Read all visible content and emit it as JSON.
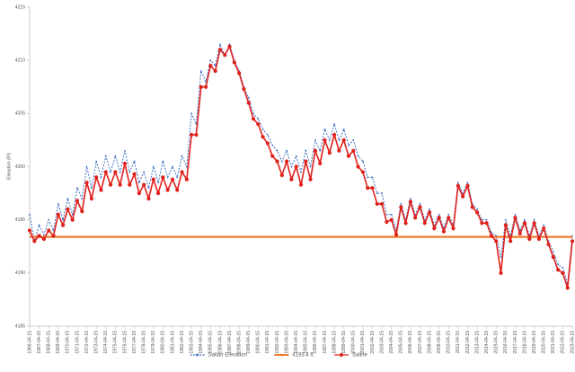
{
  "chart_data": {
    "type": "line",
    "y_label": "Elevation (Ft)",
    "ylim": [
      4185,
      4215
    ],
    "yticks": [
      4185,
      4190,
      4195,
      4200,
      4205,
      4210,
      4215
    ],
    "xlim": [
      "1966-04-15",
      "2023-04-15"
    ],
    "xticks": [
      "1966-04-15",
      "1967-04-15",
      "1968-04-15",
      "1969-04-15",
      "1970-04-15",
      "1971-04-15",
      "1972-04-15",
      "1973-04-15",
      "1974-04-15",
      "1975-04-15",
      "1976-04-15",
      "1977-04-15",
      "1978-04-15",
      "1979-04-15",
      "1980-04-15",
      "1981-04-15",
      "1982-04-15",
      "1983-04-15",
      "1984-04-15",
      "1985-04-15",
      "1986-04-15",
      "1987-04-15",
      "1988-04-15",
      "1989-04-15",
      "1990-04-15",
      "1991-04-15",
      "1992-04-15",
      "1993-04-15",
      "1994-04-15",
      "1995-04-15",
      "1996-04-15",
      "1997-04-15",
      "1998-04-15",
      "1999-04-15",
      "2000-04-15",
      "2001-04-15",
      "2002-04-15",
      "2003-04-15",
      "2004-04-15",
      "2005-04-15",
      "2006-04-15",
      "2007-04-15",
      "2008-04-15",
      "2009-04-15",
      "2010-04-15",
      "2011-04-15",
      "2012-04-15",
      "2013-04-15",
      "2014-04-15",
      "2015-04-15",
      "2016-04-15",
      "2017-04-15",
      "2018-04-15",
      "2019-04-15",
      "2020-04-15",
      "2021-04-15",
      "2022-04-15",
      "2023-04-15"
    ],
    "x": [
      "1966-04-15",
      "1966-10-15",
      "1967-04-15",
      "1967-10-15",
      "1968-04-15",
      "1968-10-15",
      "1969-04-15",
      "1969-10-15",
      "1970-04-15",
      "1970-10-15",
      "1971-04-15",
      "1971-10-15",
      "1972-04-15",
      "1972-10-15",
      "1973-04-15",
      "1973-10-15",
      "1974-04-15",
      "1974-10-15",
      "1975-04-15",
      "1975-10-15",
      "1976-04-15",
      "1976-10-15",
      "1977-04-15",
      "1977-10-15",
      "1978-04-15",
      "1978-10-15",
      "1979-04-15",
      "1979-10-15",
      "1980-04-15",
      "1980-10-15",
      "1981-04-15",
      "1981-10-15",
      "1982-04-15",
      "1982-10-15",
      "1983-04-15",
      "1983-10-15",
      "1984-04-15",
      "1984-10-15",
      "1985-04-15",
      "1985-10-15",
      "1986-04-15",
      "1986-10-15",
      "1987-04-15",
      "1987-10-15",
      "1988-04-15",
      "1988-10-15",
      "1989-04-15",
      "1989-10-15",
      "1990-04-15",
      "1990-10-15",
      "1991-04-15",
      "1991-10-15",
      "1992-04-15",
      "1992-10-15",
      "1993-04-15",
      "1993-10-15",
      "1994-04-15",
      "1994-10-15",
      "1995-04-15",
      "1995-10-15",
      "1996-04-15",
      "1996-10-15",
      "1997-04-15",
      "1997-10-15",
      "1998-04-15",
      "1998-10-15",
      "1999-04-15",
      "1999-10-15",
      "2000-04-15",
      "2000-10-15",
      "2001-04-15",
      "2001-10-15",
      "2002-04-15",
      "2002-10-15",
      "2003-04-15",
      "2003-10-15",
      "2004-04-15",
      "2004-10-15",
      "2005-04-15",
      "2005-10-15",
      "2006-04-15",
      "2006-10-15",
      "2007-04-15",
      "2007-10-15",
      "2008-04-15",
      "2008-10-15",
      "2009-04-15",
      "2009-10-15",
      "2010-04-15",
      "2010-10-15",
      "2011-04-15",
      "2011-10-15",
      "2012-04-15",
      "2012-10-15",
      "2013-04-15",
      "2013-10-15",
      "2014-04-15",
      "2014-10-15",
      "2015-04-15",
      "2015-10-15",
      "2016-04-15",
      "2016-10-15",
      "2017-04-15",
      "2017-10-15",
      "2018-04-15",
      "2018-10-15",
      "2019-04-15",
      "2019-10-15",
      "2020-04-15",
      "2020-10-15",
      "2021-04-15",
      "2021-10-15",
      "2022-04-15",
      "2022-10-15",
      "2023-04-15"
    ],
    "series": [
      {
        "name": "Saltair Elevation",
        "color": "#4472c4",
        "style": "dashed",
        "values": [
          4195.5,
          4193.0,
          4194.5,
          4193.6,
          4195.0,
          4194.0,
          4196.5,
          4195.0,
          4197.0,
          4195.5,
          4198.0,
          4197.0,
          4200.0,
          4198.0,
          4200.5,
          4199.0,
          4201.0,
          4199.5,
          4201.0,
          4199.5,
          4201.5,
          4199.5,
          4200.5,
          4198.5,
          4199.5,
          4198.0,
          4200.0,
          4198.5,
          4200.5,
          4199.0,
          4200.0,
          4199.0,
          4201.0,
          4200.0,
          4205.0,
          4204.0,
          4209.0,
          4208.0,
          4210.0,
          4209.5,
          4211.5,
          4210.5,
          4211.5,
          4210.0,
          4209.0,
          4207.5,
          4206.5,
          4205.0,
          4204.5,
          4203.5,
          4203.0,
          4202.0,
          4201.5,
          4200.5,
          4201.5,
          4200.0,
          4201.0,
          4199.5,
          4201.5,
          4200.0,
          4202.5,
          4201.5,
          4203.5,
          4202.5,
          4204.0,
          4202.5,
          4203.5,
          4202.0,
          4202.5,
          4201.0,
          4200.5,
          4199.0,
          4199.0,
          4197.5,
          4197.5,
          4195.5,
          4195.5,
          4194.0,
          4196.5,
          4195.0,
          4197.0,
          4195.5,
          4196.5,
          4195.0,
          4196.0,
          4194.5,
          4195.5,
          4194.2,
          4195.5,
          4194.5,
          4198.5,
          4197.5,
          4198.5,
          4196.5,
          4196.0,
          4195.0,
          4195.0,
          4193.8,
          4193.5,
          4191.5,
          4195.0,
          4193.5,
          4195.5,
          4194.0,
          4195.0,
          4193.5,
          4195.0,
          4193.5,
          4194.5,
          4193.0,
          4192.0,
          4190.8,
          4190.5,
          4189.0,
          4193.5
        ]
      },
      {
        "name": "4193.4 ft",
        "color": "#ed7d31",
        "style": "solid",
        "x": [
          "1966-04-15",
          "2023-04-15"
        ],
        "values": [
          4193.4,
          4193.4
        ]
      },
      {
        "name": "Saline",
        "color": "#e0201b",
        "style": "dots",
        "values": [
          4194.0,
          4193.0,
          4193.5,
          4193.2,
          4194.0,
          4193.5,
          4195.5,
          4194.5,
          4196.0,
          4195.0,
          4196.8,
          4195.8,
          4198.5,
          4197.0,
          4199.0,
          4197.8,
          4199.5,
          4198.3,
          4199.5,
          4198.3,
          4200.3,
          4198.3,
          4199.3,
          4197.5,
          4198.3,
          4197.0,
          4198.8,
          4197.5,
          4199.0,
          4197.8,
          4198.8,
          4197.8,
          4199.5,
          4198.8,
          4203.0,
          4203.0,
          4207.5,
          4207.5,
          4209.5,
          4209.0,
          4211.0,
          4210.5,
          4211.3,
          4209.8,
          4208.8,
          4207.3,
          4206.0,
          4204.5,
          4204.0,
          4202.8,
          4202.2,
          4201.0,
          4200.5,
          4199.2,
          4200.5,
          4198.8,
          4200.0,
          4198.3,
          4200.5,
          4198.8,
          4201.5,
          4200.3,
          4202.5,
          4201.3,
          4203.0,
          4201.5,
          4202.5,
          4201.0,
          4201.5,
          4200.0,
          4199.5,
          4198.0,
          4198.0,
          4196.5,
          4196.5,
          4194.8,
          4195.0,
          4193.6,
          4196.2,
          4194.7,
          4196.7,
          4195.2,
          4196.2,
          4194.7,
          4195.7,
          4194.2,
          4195.2,
          4193.9,
          4195.2,
          4194.2,
          4198.2,
          4197.2,
          4198.2,
          4196.2,
          4195.7,
          4194.7,
          4194.7,
          4193.5,
          4193.0,
          4190.0,
          4194.5,
          4193.0,
          4195.2,
          4193.7,
          4194.7,
          4193.2,
          4194.7,
          4193.2,
          4194.2,
          4192.7,
          4191.5,
          4190.3,
          4190.0,
          4188.6,
          4193.0
        ]
      }
    ]
  }
}
